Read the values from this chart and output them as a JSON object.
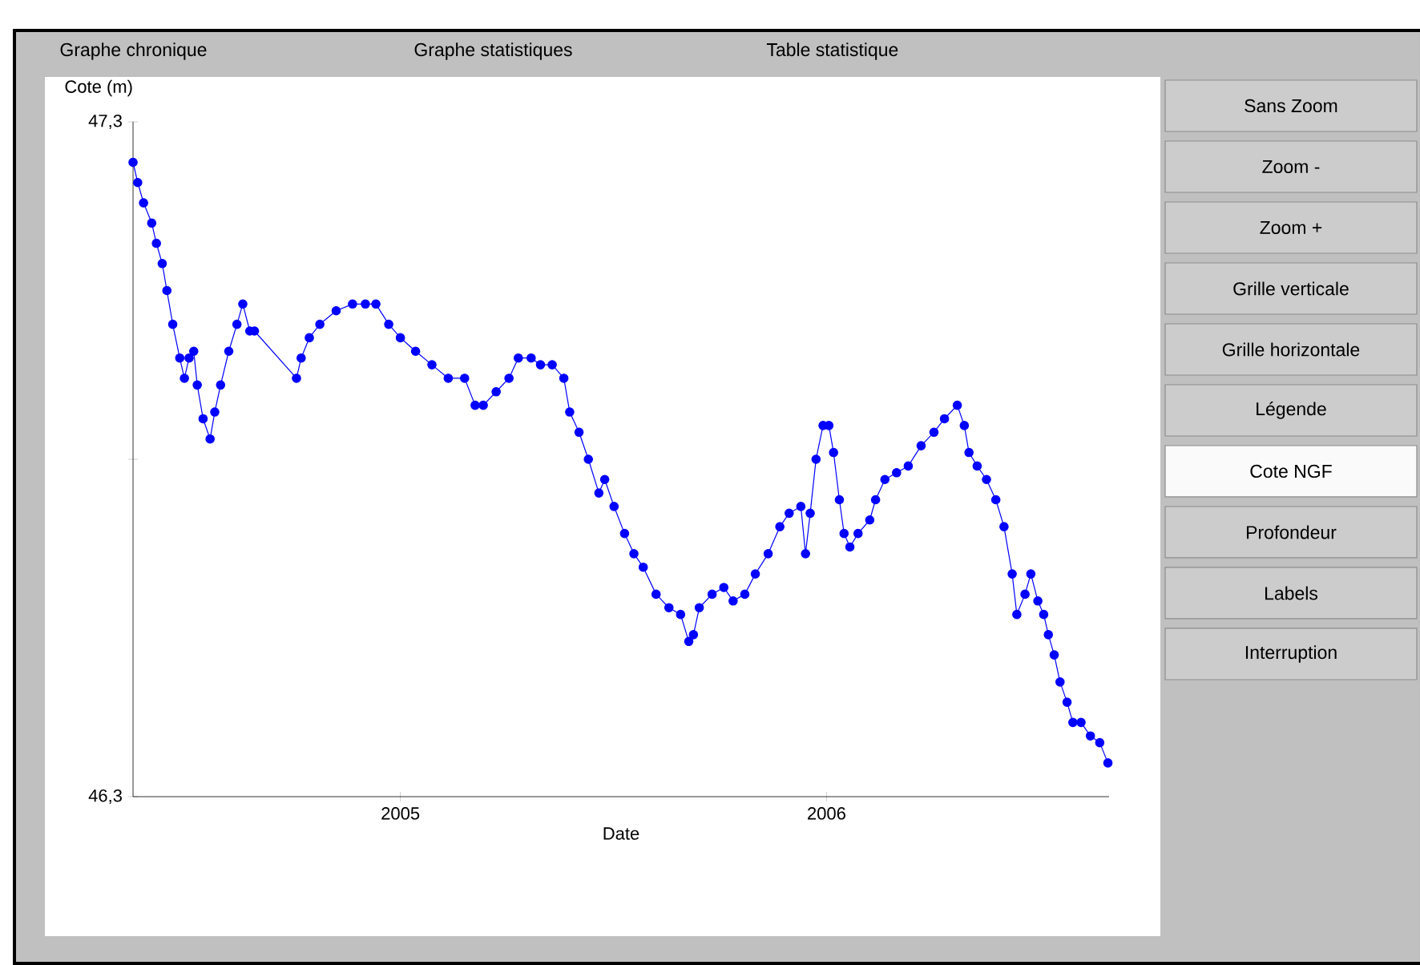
{
  "chart_data": {
    "type": "line",
    "xlabel": "Date",
    "ylabel": "Cote (m)",
    "x": [
      "2004-05-17",
      "2004-05-21",
      "2004-05-26",
      "2004-06-02",
      "2004-06-06",
      "2004-06-11",
      "2004-06-15",
      "2004-06-20",
      "2004-06-26",
      "2004-06-30",
      "2004-07-04",
      "2004-07-08",
      "2004-07-11",
      "2004-07-16",
      "2004-07-22",
      "2004-07-26",
      "2004-07-31",
      "2004-08-07",
      "2004-08-14",
      "2004-08-19",
      "2004-08-25",
      "2004-08-29",
      "2004-10-04",
      "2004-10-08",
      "2004-10-15",
      "2004-10-24",
      "2004-11-07",
      "2004-11-21",
      "2004-12-02",
      "2004-12-11",
      "2004-12-22",
      "2005-01-01",
      "2005-01-14",
      "2005-01-28",
      "2005-02-11",
      "2005-02-25",
      "2005-03-06",
      "2005-03-13",
      "2005-03-24",
      "2005-04-04",
      "2005-04-12",
      "2005-04-23",
      "2005-05-01",
      "2005-05-11",
      "2005-05-21",
      "2005-05-26",
      "2005-06-03",
      "2005-06-11",
      "2005-06-20",
      "2005-06-25",
      "2005-07-03",
      "2005-07-12",
      "2005-07-20",
      "2005-07-28",
      "2005-08-08",
      "2005-08-19",
      "2005-08-29",
      "2005-09-05",
      "2005-09-09",
      "2005-09-14",
      "2005-09-25",
      "2005-10-05",
      "2005-10-13",
      "2005-10-23",
      "2005-11-01",
      "2005-11-12",
      "2005-11-22",
      "2005-11-30",
      "2005-12-10",
      "2005-12-14",
      "2005-12-18",
      "2005-12-23",
      "2005-12-29",
      "2006-01-03",
      "2006-01-07",
      "2006-01-12",
      "2006-01-16",
      "2006-01-21",
      "2006-01-28",
      "2006-02-07",
      "2006-02-12",
      "2006-02-20",
      "2006-03-02",
      "2006-03-12",
      "2006-03-23",
      "2006-04-03",
      "2006-04-12",
      "2006-04-23",
      "2006-04-29",
      "2006-05-03",
      "2006-05-10",
      "2006-05-18",
      "2006-05-26",
      "2006-06-02",
      "2006-06-09",
      "2006-06-13",
      "2006-06-20",
      "2006-06-25",
      "2006-07-01",
      "2006-07-06",
      "2006-07-10",
      "2006-07-15",
      "2006-07-20",
      "2006-07-26",
      "2006-07-31",
      "2006-08-07",
      "2006-08-15",
      "2006-08-23",
      "2006-08-30"
    ],
    "series": [
      {
        "color": "#0000ff",
        "values": [
          47.24,
          47.21,
          47.18,
          47.15,
          47.12,
          47.09,
          47.05,
          47.0,
          46.95,
          46.92,
          46.95,
          46.96,
          46.91,
          46.86,
          46.83,
          46.87,
          46.91,
          46.96,
          47.0,
          47.03,
          46.99,
          46.99,
          46.92,
          46.95,
          46.98,
          47.0,
          47.02,
          47.03,
          47.03,
          47.03,
          47.0,
          46.98,
          46.96,
          46.94,
          46.92,
          46.92,
          46.88,
          46.88,
          46.9,
          46.92,
          46.95,
          46.95,
          46.94,
          46.94,
          46.92,
          46.87,
          46.84,
          46.8,
          46.75,
          46.77,
          46.73,
          46.69,
          46.66,
          46.64,
          46.6,
          46.58,
          46.57,
          46.53,
          46.54,
          46.58,
          46.6,
          46.61,
          46.59,
          46.6,
          46.63,
          46.66,
          46.7,
          46.72,
          46.73,
          46.66,
          46.72,
          46.8,
          46.85,
          46.85,
          46.81,
          46.74,
          46.69,
          46.67,
          46.69,
          46.71,
          46.74,
          46.77,
          46.78,
          46.79,
          46.82,
          46.84,
          46.86,
          46.88,
          46.85,
          46.81,
          46.79,
          46.77,
          46.74,
          46.7,
          46.63,
          46.57,
          46.6,
          46.63,
          46.59,
          46.57,
          46.54,
          46.51,
          46.47,
          46.44,
          46.41,
          46.41,
          46.39,
          46.38,
          46.35
        ]
      }
    ],
    "xlim": [
      "2004-05-17",
      "2006-08-31"
    ],
    "xticks": [
      "2005",
      "2006"
    ],
    "ylim": [
      46.3,
      47.3
    ],
    "yticks": [
      {
        "value": 47.3,
        "label": "47,3"
      },
      {
        "value": 46.8,
        "label": null
      },
      {
        "value": 46.3,
        "label": "46,3"
      }
    ],
    "marker": "circle",
    "line_style": "solid",
    "annotations": [
      "Graphe chronique",
      "Graphe statistiques",
      "Table statistique",
      "Sans Zoom",
      "Zoom -",
      "Zoom +",
      "Grille verticale",
      "Grille horizontale",
      "Légende",
      "Cote NGF",
      "Profondeur",
      "Labels",
      "Interruption"
    ]
  }
}
